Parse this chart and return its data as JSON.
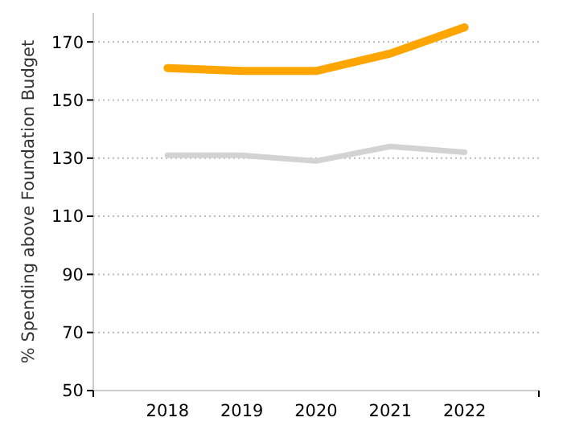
{
  "chart_data": {
    "type": "line",
    "ylabel": "% Spending above Foundation Budget",
    "categories": [
      "2018",
      "2019",
      "2020",
      "2021",
      "2022"
    ],
    "series": [
      {
        "color": "#ffa500",
        "values": [
          161,
          160,
          160,
          166,
          175
        ]
      },
      {
        "color": "#d3d3d3",
        "values": [
          131,
          131,
          129,
          134,
          132
        ]
      }
    ],
    "ylim": [
      50,
      180
    ],
    "yticks": [
      50,
      70,
      90,
      110,
      130,
      150,
      170
    ],
    "grid": "y",
    "marker": "none",
    "line_style": "solid"
  }
}
